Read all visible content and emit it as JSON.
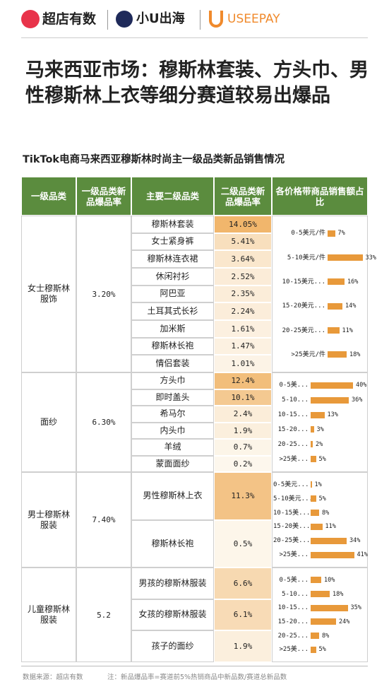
{
  "header": {
    "brands": [
      "超店有数",
      "小U出海",
      "USEEPAY"
    ]
  },
  "title": "马来西亚市场：穆斯林套装、方头巾、男性穆斯林上衣等细分赛道较易出爆品",
  "subtitle": "TikTok电商马来西亚穆斯林时尚主一级品类新品销售情况",
  "table": {
    "columns": [
      "一级品类",
      "一级品类新品爆品率",
      "主要二级品类",
      "二级品类新品爆品率",
      "各价格带商品销售额占比"
    ],
    "groups": [
      {
        "category": "女士穆斯林服饰",
        "rate": "3.20%",
        "subcategories": [
          {
            "name": "穆斯林套装",
            "rate": "14.05%"
          },
          {
            "name": "女士紧身裤",
            "rate": "5.41%"
          },
          {
            "name": "穆斯林连衣裙",
            "rate": "3.64%"
          },
          {
            "name": "休闲衬衫",
            "rate": "2.52%"
          },
          {
            "name": "阿巴亚",
            "rate": "2.35%"
          },
          {
            "name": "土耳其式长衫",
            "rate": "2.24%"
          },
          {
            "name": "加米斯",
            "rate": "1.61%"
          },
          {
            "name": "穆斯林长袍",
            "rate": "1.47%"
          },
          {
            "name": "情侣套装",
            "rate": "1.01%"
          }
        ],
        "price_bands": [
          {
            "label": "0-5美元/件",
            "value": 7,
            "value_label": "7%"
          },
          {
            "label": "5-10美元/件",
            "value": 33,
            "value_label": "33%"
          },
          {
            "label": "10-15美元...",
            "value": 16,
            "value_label": "16%"
          },
          {
            "label": "15-20美元...",
            "value": 14,
            "value_label": "14%"
          },
          {
            "label": "20-25美元...",
            "value": 11,
            "value_label": "11%"
          },
          {
            "label": ">25美元/件",
            "value": 18,
            "value_label": "18%"
          }
        ]
      },
      {
        "category": "面纱",
        "rate": "6.30%",
        "subcategories": [
          {
            "name": "方头巾",
            "rate": "12.4%"
          },
          {
            "name": "即时盖头",
            "rate": "10.1%"
          },
          {
            "name": "希马尔",
            "rate": "2.4%"
          },
          {
            "name": "内头巾",
            "rate": "1.9%"
          },
          {
            "name": "羊绒",
            "rate": "0.7%"
          },
          {
            "name": "蒙面面纱",
            "rate": "0.2%"
          }
        ],
        "price_bands": [
          {
            "label": "0-5美...",
            "value": 40,
            "value_label": "40%"
          },
          {
            "label": "5-10...",
            "value": 36,
            "value_label": "36%"
          },
          {
            "label": "10-15...",
            "value": 13,
            "value_label": "13%"
          },
          {
            "label": "15-20...",
            "value": 3,
            "value_label": "3%"
          },
          {
            "label": "20-25...",
            "value": 2,
            "value_label": "2%"
          },
          {
            "label": ">25美...",
            "value": 5,
            "value_label": "5%"
          }
        ]
      },
      {
        "category": "男士穆斯林服装",
        "rate": "7.40%",
        "subcategories": [
          {
            "name": "男性穆斯林上衣",
            "rate": "11.3%"
          },
          {
            "name": "穆斯林长袍",
            "rate": "0.5%"
          }
        ],
        "price_bands": [
          {
            "label": "0-5美元...",
            "value": 1,
            "value_label": "1%"
          },
          {
            "label": "5-10美元...",
            "value": 5,
            "value_label": "5%"
          },
          {
            "label": "10-15美...",
            "value": 8,
            "value_label": "8%"
          },
          {
            "label": "15-20美...",
            "value": 11,
            "value_label": "11%"
          },
          {
            "label": "20-25美...",
            "value": 34,
            "value_label": "34%"
          },
          {
            "label": ">25美...",
            "value": 41,
            "value_label": "41%"
          }
        ]
      },
      {
        "category": "儿童穆斯林服装",
        "rate": "5.2",
        "subcategories": [
          {
            "name": "男孩的穆斯林服装",
            "rate": "6.6%"
          },
          {
            "name": "女孩的穆斯林服装",
            "rate": "6.1%"
          },
          {
            "name": "孩子的面纱",
            "rate": "1.9%"
          }
        ],
        "price_bands": [
          {
            "label": "0-5美...",
            "value": 10,
            "value_label": "10%"
          },
          {
            "label": "5-10...",
            "value": 18,
            "value_label": "18%"
          },
          {
            "label": "10-15...",
            "value": 35,
            "value_label": "35%"
          },
          {
            "label": "15-20...",
            "value": 24,
            "value_label": "24%"
          },
          {
            "label": "20-25...",
            "value": 8,
            "value_label": "8%"
          },
          {
            "label": ">25美...",
            "value": 5,
            "value_label": "5%"
          }
        ]
      }
    ]
  },
  "footer": {
    "source": "数据来源：超店有数",
    "note": "注：新品爆品率=赛道前5%热销商品中新品数/赛道总新品数"
  }
}
